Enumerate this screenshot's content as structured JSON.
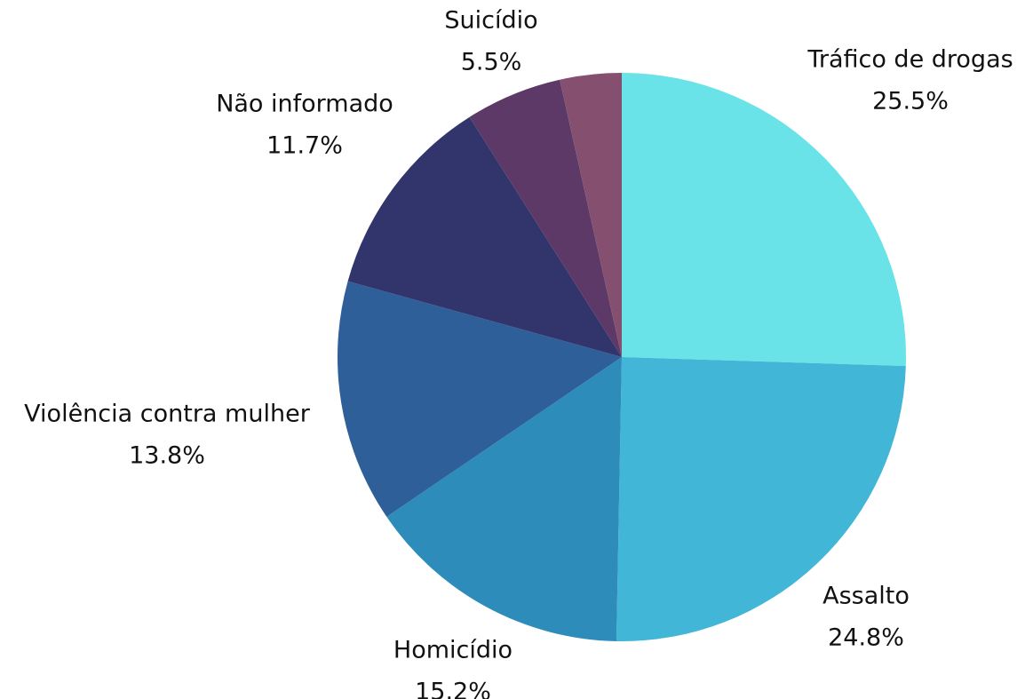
{
  "chart_data": {
    "type": "pie",
    "categories": [
      "Tráfico de drogas",
      "Assalto",
      "Homicídio",
      "Violência contra mulher",
      "Não informado",
      "Suicídio",
      null
    ],
    "values": [
      25.5,
      24.8,
      15.2,
      13.8,
      11.7,
      5.5,
      3.5
    ],
    "value_labels": [
      "25.5%",
      "24.8%",
      "15.2%",
      "13.8%",
      "11.7%",
      "5.5%",
      null
    ],
    "colors": [
      "#6ae3e8",
      "#42b6d6",
      "#2e8cbb",
      "#2e5f98",
      "#32346c",
      "#5c3966",
      "#85506f"
    ]
  }
}
